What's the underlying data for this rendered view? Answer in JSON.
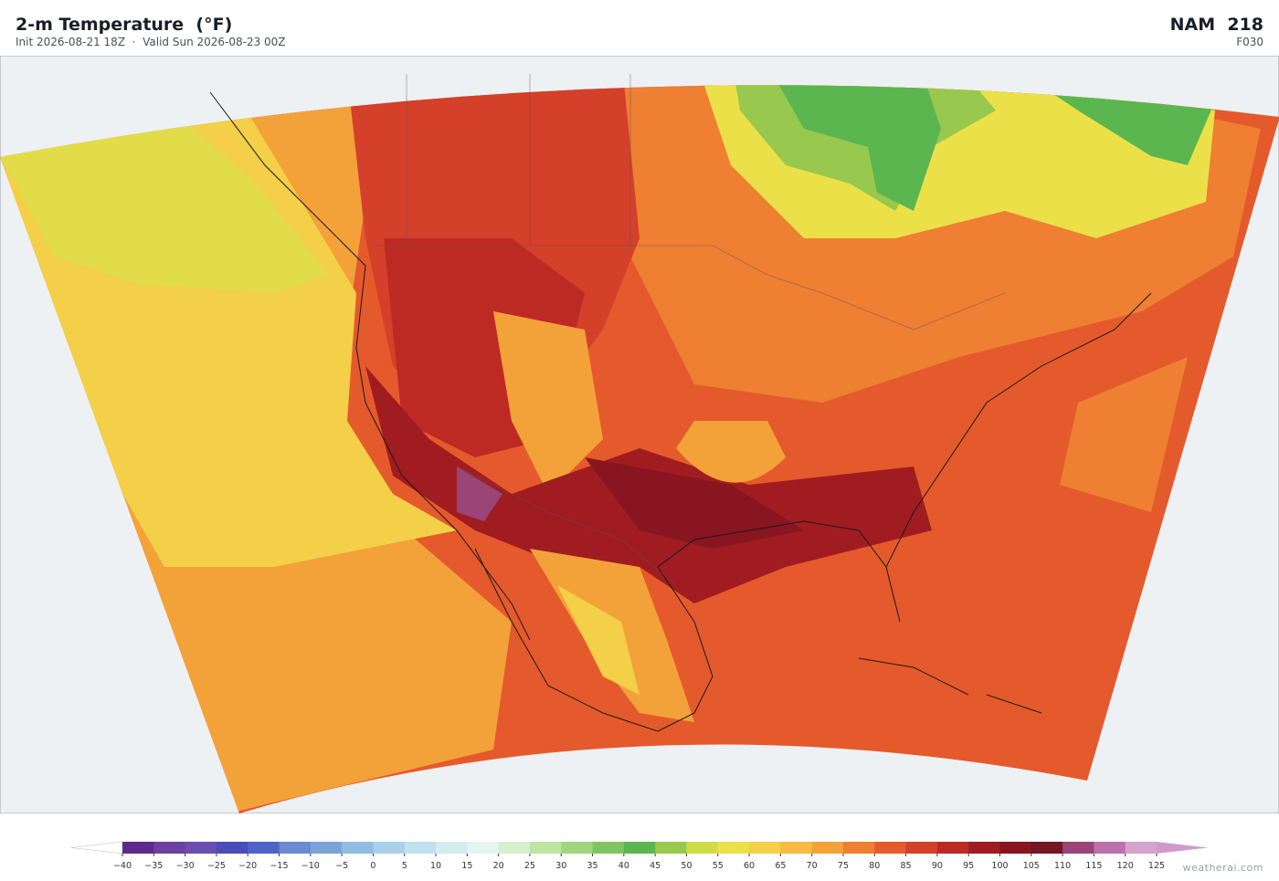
{
  "header": {
    "title": "2-m Temperature  (°F)",
    "subtitle": "Init 2026-08-21 18Z  ·  Valid Sun 2026-08-23 00Z",
    "model": "NAM  218",
    "forecast_hour": "F030"
  },
  "colorbar": {
    "ticks": [
      {
        "value": -40,
        "label": "−40"
      },
      {
        "value": -35,
        "label": "−35"
      },
      {
        "value": -30,
        "label": "−30"
      },
      {
        "value": -25,
        "label": "−25"
      },
      {
        "value": -20,
        "label": "−20"
      },
      {
        "value": -15,
        "label": "−15"
      },
      {
        "value": -10,
        "label": "−10"
      },
      {
        "value": -5,
        "label": "−5"
      },
      0,
      5,
      10,
      15,
      20,
      25,
      30,
      35,
      40,
      45,
      50,
      55,
      60,
      65,
      70,
      75,
      80,
      85,
      90,
      95,
      100,
      105,
      110,
      115,
      120,
      125
    ],
    "colors": [
      "#5e2a8c",
      "#6f3fa0",
      "#6a4fb0",
      "#4a4cb8",
      "#4f63c8",
      "#6a8ad2",
      "#7aa4d8",
      "#90bde0",
      "#a9d0e8",
      "#c0e0ee",
      "#d4ecf0",
      "#e4f4ee",
      "#d8efcf",
      "#bfe3a0",
      "#a0d67e",
      "#7fc662",
      "#5cb64f",
      "#98c84e",
      "#cfdc48",
      "#ece048",
      "#f4cf48",
      "#f5bb42",
      "#f3a23a",
      "#ee7f33",
      "#e55a2c",
      "#d4402a",
      "#bd2a24",
      "#a01c20",
      "#881520",
      "#741624",
      "#9a4478",
      "#bb72ac",
      "#d5a3cc"
    ],
    "extend_low_color": "#ffffff",
    "extend_high_color": "#d09acb"
  },
  "footer": {
    "credit": "weatherai.com"
  }
}
